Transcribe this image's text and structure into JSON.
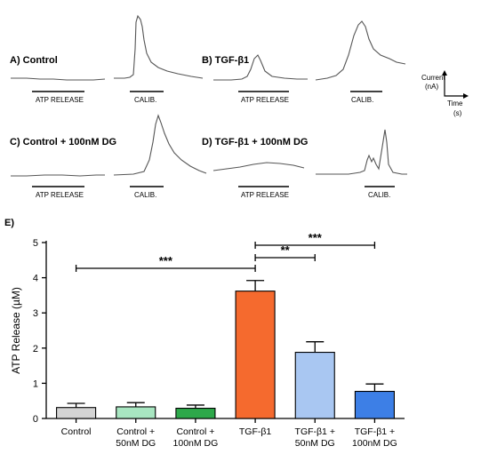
{
  "top_panels": {
    "a_label": "A) Control",
    "b_label": "B) TGF-β1",
    "c_label": "C) Control + 100nM DG",
    "d_label": "D) TGF-β1 + 100nM DG",
    "atp_release": "ATP RELEASE",
    "calib": "CALIB.",
    "y_axis_label_1": "Current",
    "y_axis_label_2": "(nA)",
    "x_axis_label_1": "Time",
    "x_axis_label_2": "(s)"
  },
  "panel_e_label": "E)",
  "chart_data": {
    "type": "bar",
    "title": "",
    "xlabel": "",
    "ylabel": "ATP Release (µM)",
    "ylim": [
      0,
      5
    ],
    "yticks": [
      0,
      1,
      2,
      3,
      4,
      5
    ],
    "categories": [
      "Control",
      "Control + 50nM DG",
      "Control + 100nM DG",
      "TGF-β1",
      "TGF-β1 + 50nM DG",
      "TGF-β1 + 100nM DG"
    ],
    "category_lines": [
      [
        "Control"
      ],
      [
        "Control +",
        "50nM DG"
      ],
      [
        "Control +",
        "100nM DG"
      ],
      [
        "TGF-β1"
      ],
      [
        "TGF-β1 +",
        "50nM DG"
      ],
      [
        "TGF-β1 +",
        "100nM DG"
      ]
    ],
    "values": [
      0.31,
      0.33,
      0.29,
      3.62,
      1.88,
      0.77
    ],
    "errors": [
      0.12,
      0.12,
      0.09,
      0.3,
      0.3,
      0.21
    ],
    "colors": [
      "#d4d4d4",
      "#a8e6c1",
      "#2da84a",
      "#f56a2e",
      "#a9c7f2",
      "#3d7fe6"
    ],
    "significance": [
      {
        "from": "Control",
        "to": "TGF-β1",
        "label": "***"
      },
      {
        "from": "TGF-β1",
        "to": "TGF-β1 + 50nM DG",
        "label": "**"
      },
      {
        "from": "TGF-β1",
        "to": "TGF-β1 + 100nM DG",
        "label": "***"
      }
    ]
  }
}
